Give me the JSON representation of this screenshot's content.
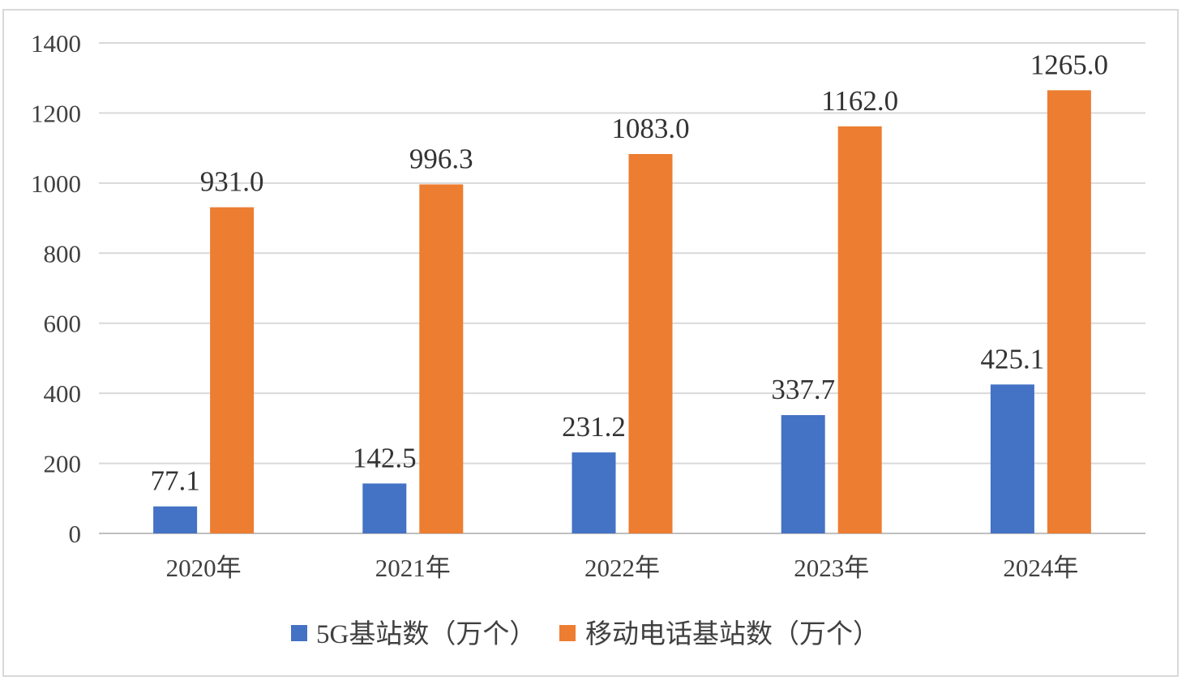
{
  "chart_data": {
    "type": "bar",
    "categories": [
      "2020年",
      "2021年",
      "2022年",
      "2023年",
      "2024年"
    ],
    "series": [
      {
        "name": "5G基站数（万个）",
        "values": [
          77.1,
          142.5,
          231.2,
          337.7,
          425.1
        ],
        "labels": [
          "77.1",
          "142.5",
          "231.2",
          "337.7",
          "425.1"
        ],
        "color": "#4472c4"
      },
      {
        "name": "移动电话基站数（万个）",
        "values": [
          931.0,
          996.3,
          1083.0,
          1162.0,
          1265.0
        ],
        "labels": [
          "931.0",
          "996.3",
          "1083.0",
          "1162.0",
          "1265.0"
        ],
        "color": "#ed7d31"
      }
    ],
    "yticks": [
      "0",
      "200",
      "400",
      "600",
      "800",
      "1000",
      "1200",
      "1400"
    ],
    "ylim": [
      0,
      1400
    ],
    "grid": true,
    "legend_position": "bottom"
  }
}
